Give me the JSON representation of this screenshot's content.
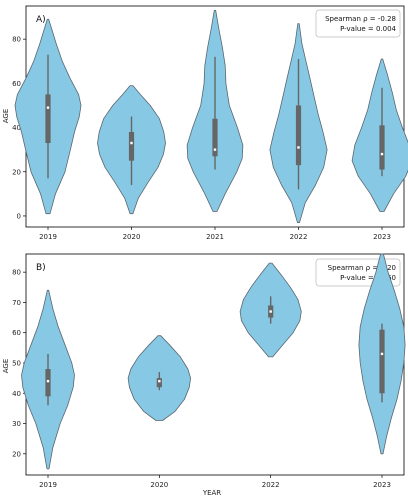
{
  "colors": {
    "violin_fill": "#87c8e4",
    "violin_stroke": "#5a6670",
    "box": "#666666",
    "median": "#ffffff"
  },
  "chart_data": [
    {
      "type": "violin",
      "panel_label": "A)",
      "xlabel": "",
      "ylabel": "AGE",
      "categories": [
        "2019",
        "2020",
        "2021",
        "2022",
        "2023"
      ],
      "yticks": [
        0,
        20,
        40,
        60,
        80
      ],
      "ylim": [
        -5,
        95
      ],
      "stats": {
        "spearman": "Spearman ρ = -0.28",
        "pvalue": "P-value = 0.004"
      },
      "violins": [
        {
          "category": "2019",
          "min": 1,
          "max": 89,
          "whisker_low": 17,
          "whisker_high": 73,
          "q1": 33,
          "q3": 55,
          "median": 49,
          "profile": [
            [
              1,
              0.06
            ],
            [
              10,
              0.22
            ],
            [
              20,
              0.5
            ],
            [
              30,
              0.66
            ],
            [
              38,
              0.78
            ],
            [
              45,
              0.92
            ],
            [
              50,
              0.97
            ],
            [
              55,
              0.9
            ],
            [
              62,
              0.66
            ],
            [
              70,
              0.42
            ],
            [
              78,
              0.24
            ],
            [
              84,
              0.12
            ],
            [
              89,
              0.02
            ]
          ]
        },
        {
          "category": "2020",
          "min": 1,
          "max": 59,
          "whisker_low": 14,
          "whisker_high": 45,
          "q1": 25,
          "q3": 38,
          "median": 33,
          "profile": [
            [
              1,
              0.04
            ],
            [
              8,
              0.2
            ],
            [
              15,
              0.48
            ],
            [
              22,
              0.78
            ],
            [
              28,
              0.94
            ],
            [
              33,
              1.0
            ],
            [
              38,
              0.95
            ],
            [
              44,
              0.82
            ],
            [
              50,
              0.55
            ],
            [
              55,
              0.26
            ],
            [
              59,
              0.04
            ]
          ]
        },
        {
          "category": "2021",
          "min": 2,
          "max": 93,
          "whisker_low": 21,
          "whisker_high": 72,
          "q1": 27,
          "q3": 44,
          "median": 30,
          "profile": [
            [
              2,
              0.06
            ],
            [
              10,
              0.3
            ],
            [
              20,
              0.64
            ],
            [
              26,
              0.8
            ],
            [
              32,
              0.82
            ],
            [
              40,
              0.66
            ],
            [
              50,
              0.42
            ],
            [
              60,
              0.32
            ],
            [
              68,
              0.3
            ],
            [
              76,
              0.22
            ],
            [
              84,
              0.12
            ],
            [
              93,
              0.02
            ]
          ]
        },
        {
          "category": "2022",
          "min": -3,
          "max": 87,
          "whisker_low": 12,
          "whisker_high": 71,
          "q1": 23,
          "q3": 50,
          "median": 31,
          "profile": [
            [
              -3,
              0.03
            ],
            [
              6,
              0.2
            ],
            [
              14,
              0.5
            ],
            [
              22,
              0.74
            ],
            [
              30,
              0.84
            ],
            [
              38,
              0.72
            ],
            [
              46,
              0.58
            ],
            [
              54,
              0.46
            ],
            [
              62,
              0.34
            ],
            [
              70,
              0.22
            ],
            [
              78,
              0.1
            ],
            [
              87,
              0.02
            ]
          ]
        },
        {
          "category": "2023",
          "min": 2,
          "max": 71,
          "whisker_low": 18,
          "whisker_high": 58,
          "q1": 21,
          "q3": 41,
          "median": 28,
          "profile": [
            [
              2,
              0.06
            ],
            [
              10,
              0.34
            ],
            [
              18,
              0.7
            ],
            [
              25,
              0.88
            ],
            [
              32,
              0.8
            ],
            [
              40,
              0.6
            ],
            [
              48,
              0.42
            ],
            [
              56,
              0.3
            ],
            [
              64,
              0.16
            ],
            [
              71,
              0.02
            ]
          ]
        }
      ]
    },
    {
      "type": "violin",
      "panel_label": "B)",
      "xlabel": "YEAR",
      "ylabel": "AGE",
      "categories": [
        "2019",
        "2020",
        "2022",
        "2023"
      ],
      "yticks": [
        20,
        30,
        40,
        50,
        60,
        70,
        80
      ],
      "ylim": [
        13,
        86
      ],
      "stats": {
        "spearman": "Spearman ρ = 0.20",
        "pvalue": "P-value = 0.560"
      },
      "violins": [
        {
          "category": "2019",
          "min": 15,
          "max": 74,
          "whisker_low": 36,
          "whisker_high": 53,
          "q1": 39,
          "q3": 48,
          "median": 44,
          "profile": [
            [
              15,
              0.03
            ],
            [
              22,
              0.14
            ],
            [
              30,
              0.36
            ],
            [
              36,
              0.58
            ],
            [
              42,
              0.74
            ],
            [
              46,
              0.78
            ],
            [
              50,
              0.7
            ],
            [
              56,
              0.5
            ],
            [
              62,
              0.3
            ],
            [
              68,
              0.14
            ],
            [
              74,
              0.02
            ]
          ]
        },
        {
          "category": "2020",
          "min": 31,
          "max": 59,
          "whisker_low": 41,
          "whisker_high": 47,
          "q1": 42,
          "q3": 45,
          "median": 44,
          "profile": [
            [
              31,
              0.1
            ],
            [
              34,
              0.46
            ],
            [
              38,
              0.74
            ],
            [
              42,
              0.88
            ],
            [
              45,
              0.92
            ],
            [
              48,
              0.84
            ],
            [
              52,
              0.62
            ],
            [
              56,
              0.3
            ],
            [
              59,
              0.04
            ]
          ]
        },
        {
          "category": "2022",
          "min": 52,
          "max": 83,
          "whisker_low": 63,
          "whisker_high": 72,
          "q1": 65,
          "q3": 69,
          "median": 67,
          "profile": [
            [
              52,
              0.06
            ],
            [
              56,
              0.36
            ],
            [
              60,
              0.66
            ],
            [
              64,
              0.86
            ],
            [
              67,
              0.9
            ],
            [
              71,
              0.8
            ],
            [
              75,
              0.58
            ],
            [
              79,
              0.32
            ],
            [
              83,
              0.04
            ]
          ]
        },
        {
          "category": "2023",
          "min": 20,
          "max": 86,
          "whisker_low": 37,
          "whisker_high": 63,
          "q1": 40,
          "q3": 61,
          "median": 53,
          "profile": [
            [
              20,
              0.03
            ],
            [
              26,
              0.14
            ],
            [
              32,
              0.28
            ],
            [
              38,
              0.44
            ],
            [
              44,
              0.56
            ],
            [
              50,
              0.64
            ],
            [
              56,
              0.68
            ],
            [
              62,
              0.64
            ],
            [
              68,
              0.52
            ],
            [
              74,
              0.36
            ],
            [
              80,
              0.18
            ],
            [
              86,
              0.04
            ]
          ]
        }
      ]
    }
  ]
}
